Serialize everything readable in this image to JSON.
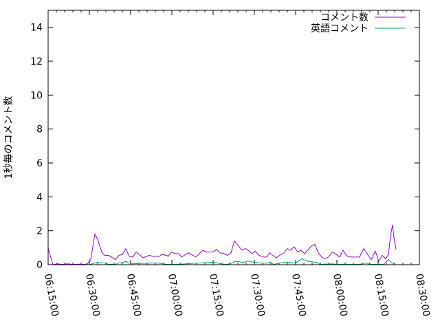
{
  "chart_data": {
    "type": "line",
    "title": "",
    "xlabel": "",
    "ylabel": "1秒毎のコメント数",
    "xlim": [
      "06:15:00",
      "08:30:00"
    ],
    "ylim": [
      0,
      15
    ],
    "x_ticks": [
      "06:15:00",
      "06:30:00",
      "06:45:00",
      "07:00:00",
      "07:15:00",
      "07:30:00",
      "07:45:00",
      "08:00:00",
      "08:15:00",
      "08:30:00"
    ],
    "y_ticks": [
      "0",
      "2",
      "4",
      "6",
      "8",
      "10",
      "12",
      "14"
    ],
    "grid": false,
    "legend_position": "top-right",
    "series": [
      {
        "name": "コメント数",
        "color": "#9400d3",
        "points": [
          [
            "06:15:00",
            0.97
          ],
          [
            "06:16:45",
            0
          ],
          [
            "06:18:30",
            0.05
          ],
          [
            "06:20:00",
            0.02
          ],
          [
            "06:22:00",
            0.05
          ],
          [
            "06:24:00",
            0.02
          ],
          [
            "06:26:00",
            0.03
          ],
          [
            "06:28:00",
            0.02
          ],
          [
            "06:29:15",
            0.05
          ],
          [
            "06:30:30",
            0.3
          ],
          [
            "06:32:00",
            1.8
          ],
          [
            "06:33:00",
            1.5
          ],
          [
            "06:34:30",
            0.75
          ],
          [
            "06:35:30",
            0.55
          ],
          [
            "06:37:00",
            0.55
          ],
          [
            "06:39:30",
            0.3
          ],
          [
            "06:40:45",
            0.55
          ],
          [
            "06:42:00",
            0.6
          ],
          [
            "06:43:15",
            0.95
          ],
          [
            "06:44:30",
            0.5
          ],
          [
            "06:45:45",
            0.45
          ],
          [
            "06:47:00",
            0.75
          ],
          [
            "06:49:30",
            0.4
          ],
          [
            "06:51:45",
            0.55
          ],
          [
            "06:53:00",
            0.5
          ],
          [
            "06:55:30",
            0.5
          ],
          [
            "06:56:15",
            0.6
          ],
          [
            "06:58:00",
            0.55
          ],
          [
            "06:58:45",
            0.5
          ],
          [
            "06:59:45",
            0.75
          ],
          [
            "07:01:15",
            0.65
          ],
          [
            "07:02:30",
            0.65
          ],
          [
            "07:03:30",
            0.45
          ],
          [
            "07:06:00",
            0.7
          ],
          [
            "07:08:45",
            0.45
          ],
          [
            "07:11:15",
            0.85
          ],
          [
            "07:12:30",
            0.75
          ],
          [
            "07:15:00",
            0.75
          ],
          [
            "07:16:15",
            0.9
          ],
          [
            "07:17:30",
            0.7
          ],
          [
            "07:19:00",
            0.65
          ],
          [
            "07:20:15",
            0.55
          ],
          [
            "07:21:30",
            0.7
          ],
          [
            "07:22:45",
            1.4
          ],
          [
            "07:24:15",
            1.1
          ],
          [
            "07:25:30",
            0.85
          ],
          [
            "07:26:45",
            0.95
          ],
          [
            "07:27:45",
            0.85
          ],
          [
            "07:29:15",
            0.65
          ],
          [
            "07:30:15",
            0.8
          ],
          [
            "07:31:45",
            0.55
          ],
          [
            "07:33:15",
            0.45
          ],
          [
            "07:34:30",
            0.45
          ],
          [
            "07:35:30",
            0.7
          ],
          [
            "07:36:45",
            0.55
          ],
          [
            "07:38:00",
            0.4
          ],
          [
            "07:39:30",
            0.6
          ],
          [
            "07:40:30",
            0.65
          ],
          [
            "07:42:00",
            0.95
          ],
          [
            "07:43:00",
            0.85
          ],
          [
            "07:44:30",
            1.05
          ],
          [
            "07:45:45",
            0.75
          ],
          [
            "07:47:00",
            0.85
          ],
          [
            "07:48:15",
            0.65
          ],
          [
            "07:50:45",
            1.1
          ],
          [
            "07:52:00",
            1.2
          ],
          [
            "07:53:15",
            0.7
          ],
          [
            "07:54:30",
            0.45
          ],
          [
            "07:55:30",
            0.35
          ],
          [
            "07:57:00",
            0.45
          ],
          [
            "07:58:15",
            0.75
          ],
          [
            "07:59:30",
            0.65
          ],
          [
            "08:01:00",
            0.45
          ],
          [
            "08:02:15",
            0.85
          ],
          [
            "08:03:45",
            0.5
          ],
          [
            "08:05:00",
            0.45
          ],
          [
            "08:08:15",
            0.45
          ],
          [
            "08:09:45",
            0.95
          ],
          [
            "08:11:00",
            0.65
          ],
          [
            "08:12:30",
            0.3
          ],
          [
            "08:14:00",
            0.8
          ],
          [
            "08:15:15",
            0.2
          ],
          [
            "08:16:30",
            0.55
          ],
          [
            "08:17:45",
            0.35
          ],
          [
            "08:18:45",
            0.6
          ],
          [
            "08:19:30",
            1.7
          ],
          [
            "08:20:15",
            2.35
          ],
          [
            "08:20:45",
            1.6
          ],
          [
            "08:21:30",
            0.9
          ]
        ]
      },
      {
        "name": "英語コメント",
        "color": "#009e73",
        "points": [
          [
            "06:30:00",
            0
          ],
          [
            "06:33:00",
            0.15
          ],
          [
            "06:34:15",
            0.1
          ],
          [
            "06:36:15",
            0.1
          ],
          [
            "06:36:45",
            0.02
          ],
          [
            "06:39:30",
            0.02
          ],
          [
            "06:40:30",
            0.1
          ],
          [
            "06:42:00",
            0.12
          ],
          [
            "06:43:15",
            0.2
          ],
          [
            "06:45:00",
            0.05
          ],
          [
            "06:54:30",
            0.1
          ],
          [
            "06:58:00",
            0.02
          ],
          [
            "07:03:00",
            0.03
          ],
          [
            "07:15:30",
            0.15
          ],
          [
            "07:17:00",
            0.08
          ],
          [
            "07:19:30",
            0.02
          ],
          [
            "07:21:15",
            0.05
          ],
          [
            "07:23:00",
            0.2
          ],
          [
            "07:24:30",
            0.18
          ],
          [
            "07:25:45",
            0.12
          ],
          [
            "07:27:45",
            0.22
          ],
          [
            "07:29:30",
            0.15
          ],
          [
            "07:32:00",
            0.1
          ],
          [
            "07:34:30",
            0.08
          ],
          [
            "07:35:45",
            0.15
          ],
          [
            "07:37:00",
            0.02
          ],
          [
            "07:38:45",
            0.08
          ],
          [
            "07:41:45",
            0.15
          ],
          [
            "07:45:00",
            0.1
          ],
          [
            "07:47:15",
            0.35
          ],
          [
            "07:49:30",
            0.2
          ],
          [
            "07:53:00",
            0.12
          ],
          [
            "07:53:45",
            0.02
          ],
          [
            "07:58:00",
            0.05
          ],
          [
            "08:00:30",
            0.02
          ],
          [
            "08:08:45",
            0.02
          ],
          [
            "08:10:45",
            0.1
          ],
          [
            "08:12:00",
            0.02
          ],
          [
            "08:17:00",
            0.02
          ],
          [
            "08:18:45",
            0.3
          ],
          [
            "08:20:00",
            0.1
          ],
          [
            "08:21:00",
            0.02
          ]
        ]
      }
    ]
  }
}
